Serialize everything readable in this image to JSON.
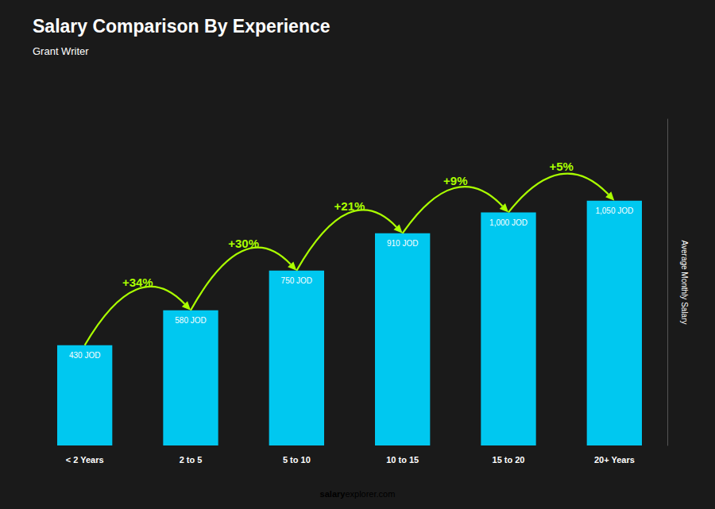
{
  "chart_data": {
    "type": "bar",
    "title": "Salary Comparison By Experience",
    "subtitle": "Grant Writer",
    "categories": [
      "< 2 Years",
      "2 to 5",
      "5 to 10",
      "10 to 15",
      "15 to 20",
      "20+ Years"
    ],
    "values": [
      430,
      580,
      750,
      910,
      1000,
      1050
    ],
    "value_labels": [
      "430 JOD",
      "580 JOD",
      "750 JOD",
      "910 JOD",
      "1,000 JOD",
      "1,050 JOD"
    ],
    "data_labels": true,
    "color": "#00c8f0",
    "ylabel": "Average Monthly Salary",
    "ylim": [
      0,
      1400
    ],
    "yticks": [],
    "tick_labels": "x",
    "grid": false,
    "annotations": [
      {
        "text": "+34%",
        "color": "#aaff00"
      },
      {
        "text": "+30%",
        "color": "#aaff00"
      },
      {
        "text": "+21%",
        "color": "#aaff00"
      },
      {
        "text": "+9%",
        "color": "#aaff00"
      },
      {
        "text": "+5%",
        "color": "#aaff00"
      }
    ],
    "footer": [
      {
        "text": "salary",
        "color": "#ffffff"
      },
      {
        "text": "explorer.com",
        "color": "#00c8f0"
      }
    ]
  }
}
